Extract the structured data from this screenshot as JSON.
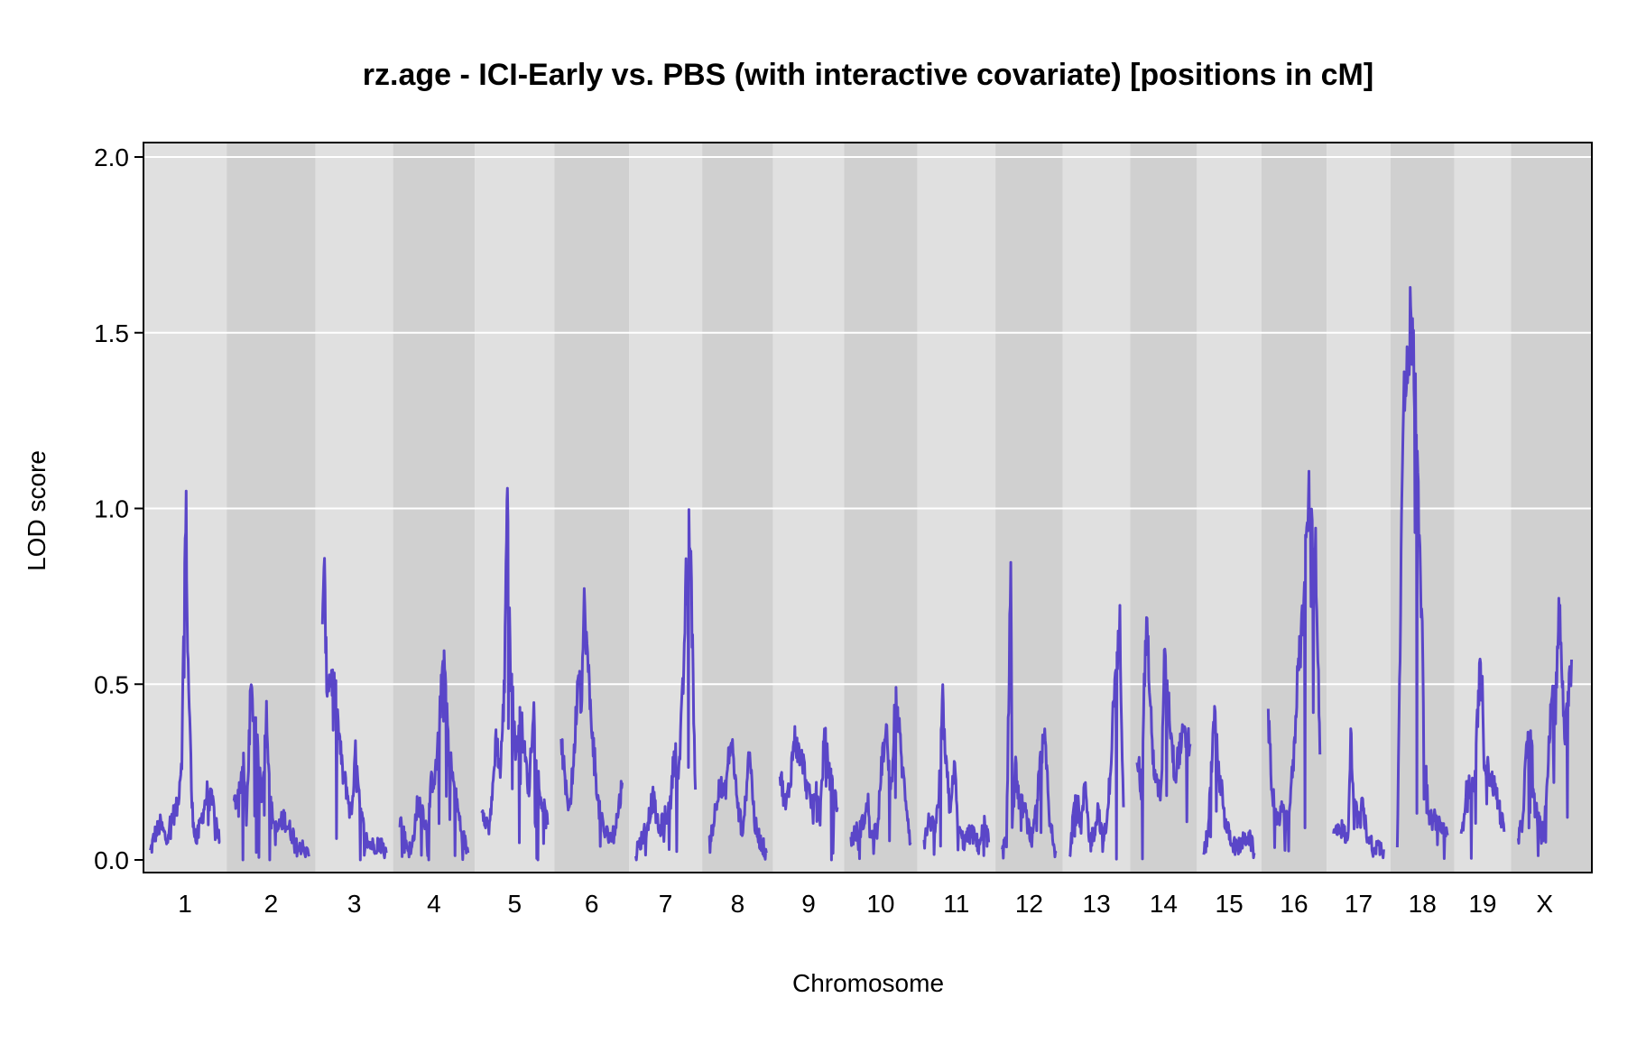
{
  "chart_data": {
    "type": "line",
    "title": "rz.age - ICI-Early vs. PBS (with interactive covariate) [positions in cM]",
    "xlabel": "Chromosome",
    "ylabel": "LOD score",
    "ylim": [
      0,
      2.0
    ],
    "yticks": [
      "0.0",
      "0.5",
      "1.0",
      "1.5",
      "2.0"
    ],
    "grid": true,
    "line_color": "#5A46C8",
    "band_colors": [
      "#E0E0E0",
      "#D0D0D0"
    ],
    "chromosomes": [
      {
        "label": "1",
        "length": 97,
        "peaks": [
          [
            0,
            0.02
          ],
          [
            6,
            0.07
          ],
          [
            14,
            0.1
          ],
          [
            22,
            0.06
          ],
          [
            30,
            0.12
          ],
          [
            38,
            0.15
          ],
          [
            44,
            0.3
          ],
          [
            48,
            0.84
          ],
          [
            50,
            0.98
          ],
          [
            52,
            0.6
          ],
          [
            55,
            0.4
          ],
          [
            58,
            0.15
          ],
          [
            64,
            0.05
          ],
          [
            72,
            0.12
          ],
          [
            80,
            0.2
          ],
          [
            88,
            0.15
          ],
          [
            97,
            0.05
          ]
        ]
      },
      {
        "label": "2",
        "length": 105,
        "peaks": [
          [
            0,
            0.15
          ],
          [
            8,
            0.2
          ],
          [
            14,
            0.28
          ],
          [
            18,
            0.1
          ],
          [
            24,
            0.48
          ],
          [
            28,
            0.42
          ],
          [
            34,
            0.3
          ],
          [
            40,
            0.2
          ],
          [
            46,
            0.42
          ],
          [
            52,
            0.15
          ],
          [
            60,
            0.08
          ],
          [
            70,
            0.12
          ],
          [
            80,
            0.08
          ],
          [
            90,
            0.05
          ],
          [
            105,
            0.01
          ]
        ]
      },
      {
        "label": "3",
        "length": 89,
        "peaks": [
          [
            0,
            0.72
          ],
          [
            3,
            0.8
          ],
          [
            6,
            0.5
          ],
          [
            12,
            0.52
          ],
          [
            18,
            0.48
          ],
          [
            22,
            0.38
          ],
          [
            28,
            0.25
          ],
          [
            34,
            0.2
          ],
          [
            40,
            0.12
          ],
          [
            46,
            0.3
          ],
          [
            52,
            0.15
          ],
          [
            60,
            0.06
          ],
          [
            70,
            0.04
          ],
          [
            80,
            0.05
          ],
          [
            89,
            0.02
          ]
        ]
      },
      {
        "label": "4",
        "length": 95,
        "peaks": [
          [
            0,
            0.12
          ],
          [
            8,
            0.05
          ],
          [
            16,
            0.02
          ],
          [
            24,
            0.15
          ],
          [
            30,
            0.16
          ],
          [
            38,
            0.08
          ],
          [
            44,
            0.22
          ],
          [
            50,
            0.25
          ],
          [
            56,
            0.42
          ],
          [
            60,
            0.57
          ],
          [
            64,
            0.5
          ],
          [
            68,
            0.32
          ],
          [
            76,
            0.2
          ],
          [
            86,
            0.08
          ],
          [
            95,
            0.02
          ]
        ]
      },
      {
        "label": "5",
        "length": 92,
        "peaks": [
          [
            0,
            0.16
          ],
          [
            8,
            0.1
          ],
          [
            14,
            0.15
          ],
          [
            20,
            0.35
          ],
          [
            26,
            0.25
          ],
          [
            32,
            0.5
          ],
          [
            34,
            0.88
          ],
          [
            36,
            1.09
          ],
          [
            38,
            0.7
          ],
          [
            42,
            0.5
          ],
          [
            48,
            0.3
          ],
          [
            54,
            0.42
          ],
          [
            60,
            0.3
          ],
          [
            66,
            0.2
          ],
          [
            72,
            0.45
          ],
          [
            80,
            0.2
          ],
          [
            92,
            0.1
          ]
        ]
      },
      {
        "label": "6",
        "length": 85,
        "peaks": [
          [
            0,
            0.35
          ],
          [
            6,
            0.2
          ],
          [
            12,
            0.15
          ],
          [
            18,
            0.3
          ],
          [
            24,
            0.56
          ],
          [
            28,
            0.45
          ],
          [
            32,
            0.72
          ],
          [
            36,
            0.6
          ],
          [
            40,
            0.45
          ],
          [
            46,
            0.3
          ],
          [
            52,
            0.15
          ],
          [
            60,
            0.08
          ],
          [
            70,
            0.06
          ],
          [
            78,
            0.12
          ],
          [
            85,
            0.22
          ]
        ]
      },
      {
        "label": "7",
        "length": 83,
        "peaks": [
          [
            0,
            0.02
          ],
          [
            8,
            0.06
          ],
          [
            16,
            0.1
          ],
          [
            24,
            0.18
          ],
          [
            32,
            0.08
          ],
          [
            40,
            0.12
          ],
          [
            48,
            0.15
          ],
          [
            54,
            0.32
          ],
          [
            60,
            0.25
          ],
          [
            66,
            0.5
          ],
          [
            70,
            0.79
          ],
          [
            72,
            0.75
          ],
          [
            74,
            0.95
          ],
          [
            76,
            0.9
          ],
          [
            83,
            0.2
          ]
        ]
      },
      {
        "label": "8",
        "length": 80,
        "peaks": [
          [
            0,
            0.06
          ],
          [
            6,
            0.1
          ],
          [
            14,
            0.22
          ],
          [
            22,
            0.18
          ],
          [
            28,
            0.3
          ],
          [
            32,
            0.34
          ],
          [
            40,
            0.15
          ],
          [
            48,
            0.08
          ],
          [
            56,
            0.33
          ],
          [
            64,
            0.1
          ],
          [
            72,
            0.05
          ],
          [
            80,
            0.02
          ]
        ]
      },
      {
        "label": "9",
        "length": 80,
        "peaks": [
          [
            0,
            0.25
          ],
          [
            8,
            0.15
          ],
          [
            14,
            0.22
          ],
          [
            20,
            0.35
          ],
          [
            26,
            0.3
          ],
          [
            32,
            0.28
          ],
          [
            38,
            0.2
          ],
          [
            44,
            0.16
          ],
          [
            50,
            0.2
          ],
          [
            56,
            0.12
          ],
          [
            62,
            0.36
          ],
          [
            68,
            0.25
          ],
          [
            74,
            0.2
          ],
          [
            80,
            0.15
          ]
        ]
      },
      {
        "label": "10",
        "length": 83,
        "peaks": [
          [
            0,
            0.06
          ],
          [
            8,
            0.08
          ],
          [
            16,
            0.1
          ],
          [
            24,
            0.16
          ],
          [
            30,
            0.06
          ],
          [
            38,
            0.12
          ],
          [
            44,
            0.3
          ],
          [
            50,
            0.35
          ],
          [
            56,
            0.2
          ],
          [
            62,
            0.47
          ],
          [
            66,
            0.4
          ],
          [
            72,
            0.25
          ],
          [
            78,
            0.15
          ],
          [
            83,
            0.05
          ]
        ]
      },
      {
        "label": "11",
        "length": 90,
        "peaks": [
          [
            0,
            0.05
          ],
          [
            8,
            0.12
          ],
          [
            14,
            0.08
          ],
          [
            20,
            0.15
          ],
          [
            26,
            0.45
          ],
          [
            30,
            0.28
          ],
          [
            36,
            0.15
          ],
          [
            42,
            0.27
          ],
          [
            48,
            0.08
          ],
          [
            56,
            0.05
          ],
          [
            66,
            0.08
          ],
          [
            76,
            0.04
          ],
          [
            84,
            0.1
          ],
          [
            90,
            0.05
          ]
        ]
      },
      {
        "label": "12",
        "length": 75,
        "peaks": [
          [
            0,
            0.02
          ],
          [
            6,
            0.06
          ],
          [
            12,
            0.87
          ],
          [
            14,
            0.1
          ],
          [
            18,
            0.27
          ],
          [
            24,
            0.16
          ],
          [
            30,
            0.15
          ],
          [
            36,
            0.1
          ],
          [
            42,
            0.05
          ],
          [
            48,
            0.15
          ],
          [
            54,
            0.3
          ],
          [
            60,
            0.34
          ],
          [
            66,
            0.1
          ],
          [
            75,
            0.02
          ]
        ]
      },
      {
        "label": "13",
        "length": 75,
        "peaks": [
          [
            0,
            0.02
          ],
          [
            8,
            0.2
          ],
          [
            16,
            0.1
          ],
          [
            22,
            0.22
          ],
          [
            28,
            0.05
          ],
          [
            34,
            0.08
          ],
          [
            40,
            0.15
          ],
          [
            46,
            0.05
          ],
          [
            52,
            0.1
          ],
          [
            58,
            0.3
          ],
          [
            62,
            0.48
          ],
          [
            66,
            0.55
          ],
          [
            70,
            0.67
          ],
          [
            75,
            0.15
          ]
        ]
      },
      {
        "label": "14",
        "length": 74,
        "peaks": [
          [
            0,
            0.32
          ],
          [
            6,
            0.2
          ],
          [
            10,
            0.5
          ],
          [
            14,
            0.7
          ],
          [
            18,
            0.45
          ],
          [
            22,
            0.3
          ],
          [
            28,
            0.2
          ],
          [
            34,
            0.2
          ],
          [
            38,
            0.56
          ],
          [
            42,
            0.5
          ],
          [
            46,
            0.4
          ],
          [
            52,
            0.25
          ],
          [
            58,
            0.3
          ],
          [
            64,
            0.35
          ],
          [
            74,
            0.33
          ]
        ]
      },
      {
        "label": "15",
        "length": 71,
        "peaks": [
          [
            0,
            0.01
          ],
          [
            6,
            0.08
          ],
          [
            12,
            0.3
          ],
          [
            16,
            0.43
          ],
          [
            20,
            0.25
          ],
          [
            26,
            0.2
          ],
          [
            30,
            0.1
          ],
          [
            38,
            0.06
          ],
          [
            46,
            0.03
          ],
          [
            54,
            0.05
          ],
          [
            62,
            0.07
          ],
          [
            71,
            0.02
          ]
        ]
      },
      {
        "label": "16",
        "length": 72,
        "peaks": [
          [
            0,
            0.4
          ],
          [
            6,
            0.2
          ],
          [
            12,
            0.1
          ],
          [
            18,
            0.15
          ],
          [
            24,
            0.1
          ],
          [
            30,
            0.16
          ],
          [
            36,
            0.3
          ],
          [
            42,
            0.58
          ],
          [
            48,
            0.69
          ],
          [
            52,
            0.85
          ],
          [
            56,
            1.02
          ],
          [
            58,
            1.05
          ],
          [
            62,
            0.85
          ],
          [
            66,
            0.9
          ],
          [
            70,
            0.5
          ],
          [
            72,
            0.3
          ]
        ]
      },
      {
        "label": "17",
        "length": 70,
        "peaks": [
          [
            0,
            0.07
          ],
          [
            8,
            0.1
          ],
          [
            14,
            0.08
          ],
          [
            20,
            0.05
          ],
          [
            24,
            0.35
          ],
          [
            28,
            0.2
          ],
          [
            34,
            0.1
          ],
          [
            40,
            0.16
          ],
          [
            46,
            0.08
          ],
          [
            52,
            0.05
          ],
          [
            60,
            0.04
          ],
          [
            70,
            0.03
          ]
        ]
      },
      {
        "label": "18",
        "length": 70,
        "peaks": [
          [
            0,
            0.05
          ],
          [
            4,
            0.6
          ],
          [
            6,
            1.05
          ],
          [
            8,
            1.3
          ],
          [
            12,
            1.32
          ],
          [
            16,
            1.42
          ],
          [
            18,
            1.54
          ],
          [
            20,
            1.5
          ],
          [
            22,
            1.53
          ],
          [
            24,
            1.35
          ],
          [
            26,
            1.25
          ],
          [
            28,
            1.22
          ],
          [
            30,
            0.9
          ],
          [
            34,
            0.7
          ],
          [
            38,
            0.3
          ],
          [
            44,
            0.12
          ],
          [
            52,
            0.12
          ],
          [
            60,
            0.1
          ],
          [
            70,
            0.07
          ]
        ]
      },
      {
        "label": "19",
        "length": 60,
        "peaks": [
          [
            0,
            0.05
          ],
          [
            6,
            0.18
          ],
          [
            12,
            0.22
          ],
          [
            18,
            0.2
          ],
          [
            24,
            0.45
          ],
          [
            28,
            0.59
          ],
          [
            32,
            0.3
          ],
          [
            38,
            0.25
          ],
          [
            44,
            0.22
          ],
          [
            50,
            0.18
          ],
          [
            56,
            0.12
          ],
          [
            60,
            0.08
          ]
        ]
      },
      {
        "label": "X",
        "length": 75,
        "peaks": [
          [
            0,
            0.05
          ],
          [
            6,
            0.1
          ],
          [
            12,
            0.3
          ],
          [
            18,
            0.38
          ],
          [
            24,
            0.15
          ],
          [
            30,
            0.1
          ],
          [
            36,
            0.08
          ],
          [
            42,
            0.25
          ],
          [
            48,
            0.5
          ],
          [
            52,
            0.45
          ],
          [
            56,
            0.6
          ],
          [
            58,
            0.73
          ],
          [
            62,
            0.5
          ],
          [
            66,
            0.35
          ],
          [
            70,
            0.45
          ],
          [
            75,
            0.57
          ]
        ]
      }
    ]
  }
}
